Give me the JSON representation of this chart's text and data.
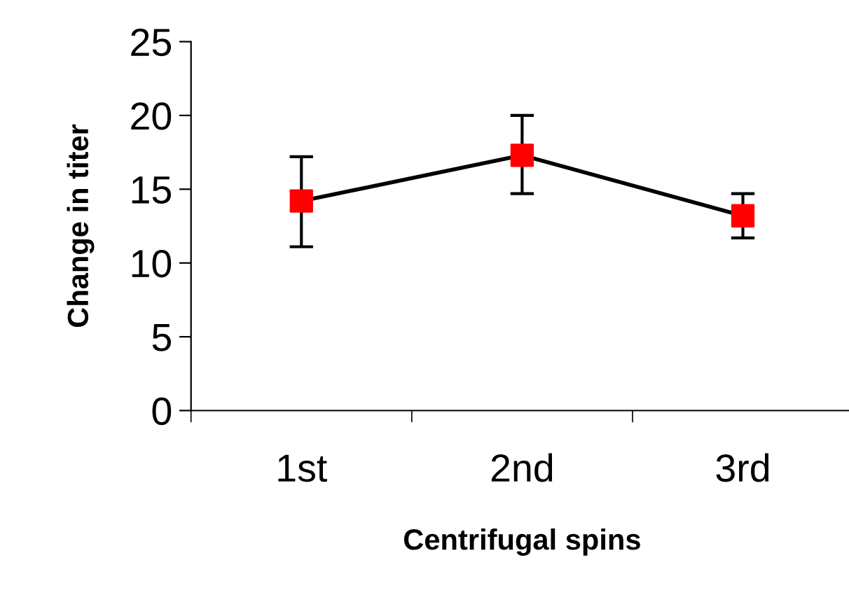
{
  "chart_data": {
    "type": "line",
    "xlabel": "Centrifugal spins",
    "ylabel": "Change in titer",
    "categories": [
      "1st",
      "2nd",
      "3rd"
    ],
    "series": [
      {
        "color": "#000000",
        "values": [
          14.2,
          17.3,
          13.2
        ],
        "colors": [
          "#ff0000",
          "#ff0000",
          "#ff0000"
        ],
        "errors": [
          [
            11.1,
            17.2
          ],
          [
            14.7,
            20.0
          ],
          [
            11.7,
            14.7
          ]
        ]
      }
    ],
    "marker": "square",
    "line_style": "solid",
    "ylim": [
      0,
      25
    ],
    "yticks": [
      0,
      5,
      10,
      15,
      20,
      25
    ],
    "grid": false,
    "legend": false
  }
}
